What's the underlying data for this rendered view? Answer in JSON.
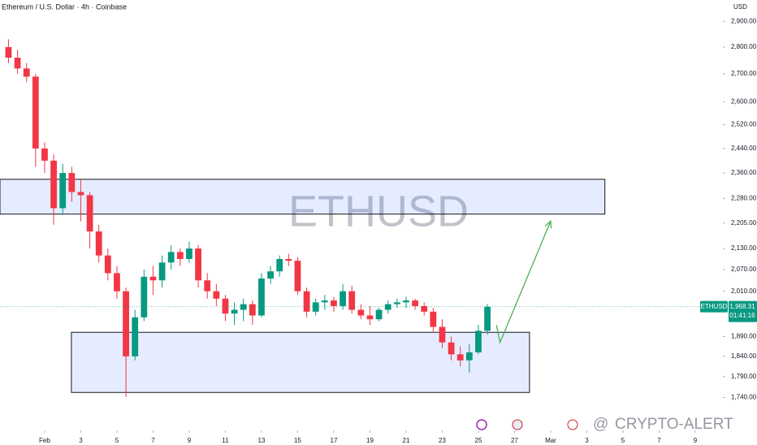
{
  "chart_data": {
    "type": "candlestick",
    "title": "Ethereum / U.S. Dollar · 4h · Coinbase",
    "watermark": "ETHUSD",
    "currency": "USD",
    "symbol": "ETHUSD",
    "last_price": {
      "value": 1968.31,
      "label": "1,968.31"
    },
    "countdown": "01:41:16",
    "brand": "CRYPTO-ALERT",
    "up_color": "#089981",
    "down_color": "#f23645",
    "log_scale": true,
    "grid": false,
    "xlim": [
      -1.47,
      38.53
    ],
    "ylim": [
      1664,
      2985
    ],
    "xticks": [
      {
        "value": 1,
        "label": "Feb"
      },
      3,
      5,
      7,
      9,
      11,
      13,
      15,
      17,
      19,
      21,
      23,
      25,
      27,
      {
        "value": 29,
        "label": "Mar"
      },
      {
        "value": 31,
        "label": "3"
      },
      {
        "value": 33,
        "label": "5"
      },
      {
        "value": 35,
        "label": "7"
      },
      {
        "value": 37,
        "label": "9"
      }
    ],
    "yticks": [
      {
        "value": 2900,
        "label": "2,900.00"
      },
      {
        "value": 2800,
        "label": "2,800.00"
      },
      {
        "value": 2700,
        "label": "2,700.00"
      },
      {
        "value": 2600,
        "label": "2,600.00"
      },
      {
        "value": 2520,
        "label": "2,520.00"
      },
      {
        "value": 2440,
        "label": "2,440.00"
      },
      {
        "value": 2360,
        "label": "2,360.00"
      },
      {
        "value": 2280,
        "label": "2,280.00"
      },
      {
        "value": 2205,
        "label": "2,205.00"
      },
      {
        "value": 2130,
        "label": "2,130.00"
      },
      {
        "value": 2070,
        "label": "2,070.00"
      },
      {
        "value": 2010,
        "label": "2,010.00"
      },
      {
        "value": 1890,
        "label": "1,890.00"
      },
      {
        "value": 1840,
        "label": "1,840.00"
      },
      {
        "value": 1790,
        "label": "1,790.00"
      },
      {
        "value": 1740,
        "label": "1,740.00"
      }
    ],
    "x": [
      -1.0,
      -0.5,
      0.0,
      0.5,
      1.0,
      1.5,
      2.0,
      2.5,
      3.0,
      3.5,
      4.0,
      4.5,
      5.0,
      5.5,
      6.0,
      6.5,
      7.0,
      7.5,
      8.0,
      8.5,
      9.0,
      9.5,
      10.0,
      10.5,
      11.0,
      11.5,
      12.0,
      12.5,
      13.0,
      13.5,
      14.0,
      14.5,
      15.0,
      15.5,
      16.0,
      16.5,
      17.0,
      17.5,
      18.0,
      18.5,
      19.0,
      19.5,
      20.0,
      20.5,
      21.0,
      21.5,
      22.0,
      22.5,
      23.0,
      23.5,
      24.0,
      24.5,
      25.0,
      25.5
    ],
    "open": [
      2800,
      2760,
      2720,
      2690,
      2440,
      2400,
      2250,
      2360,
      2300,
      2290,
      2180,
      2110,
      2060,
      2010,
      1840,
      1940,
      2050,
      2040,
      2090,
      2120,
      2100,
      2130,
      2040,
      2010,
      1990,
      1950,
      1960,
      1975,
      1945,
      2045,
      2065,
      2100,
      2095,
      2010,
      1955,
      1980,
      1985,
      1970,
      2010,
      1960,
      1945,
      1935,
      1960,
      1975,
      1980,
      1985,
      1970,
      1955,
      1915,
      1875,
      1845,
      1830,
      1850,
      1905
    ],
    "high": [
      2830,
      2790,
      2740,
      2700,
      2460,
      2420,
      2390,
      2380,
      2340,
      2300,
      2200,
      2130,
      2080,
      2020,
      1960,
      2070,
      2080,
      2110,
      2140,
      2130,
      2150,
      2140,
      2060,
      2030,
      2000,
      1980,
      1990,
      1985,
      2060,
      2080,
      2110,
      2115,
      2105,
      2020,
      1990,
      2000,
      1995,
      2030,
      2025,
      1975,
      1970,
      1965,
      1985,
      1990,
      1995,
      1990,
      1980,
      1965,
      1935,
      1890,
      1865,
      1870,
      1920,
      1975
    ],
    "low": [
      2740,
      2700,
      2670,
      2380,
      2360,
      2200,
      2230,
      2270,
      2210,
      2130,
      2090,
      2040,
      1990,
      1741,
      1830,
      1930,
      2000,
      2020,
      2070,
      2080,
      2090,
      2020,
      1990,
      1970,
      1930,
      1920,
      1930,
      1920,
      1940,
      2030,
      2050,
      2080,
      2000,
      1940,
      1945,
      1960,
      1955,
      1960,
      1950,
      1935,
      1920,
      1930,
      1950,
      1965,
      1965,
      1960,
      1945,
      1900,
      1860,
      1830,
      1815,
      1800,
      1845,
      1895
    ],
    "close": [
      2760,
      2720,
      2690,
      2440,
      2400,
      2250,
      2360,
      2300,
      2290,
      2180,
      2110,
      2060,
      2010,
      1840,
      1940,
      2050,
      2040,
      2090,
      2120,
      2100,
      2130,
      2040,
      2010,
      1990,
      1950,
      1960,
      1975,
      1945,
      2045,
      2065,
      2100,
      2095,
      2010,
      1955,
      1980,
      1985,
      1970,
      2010,
      1960,
      1945,
      1935,
      1960,
      1975,
      1980,
      1985,
      1970,
      1955,
      1915,
      1875,
      1845,
      1830,
      1850,
      1905,
      1968.31
    ],
    "zones": [
      {
        "x": [
          -1.47,
          32.0
        ],
        "y": [
          2232,
          2340
        ]
      },
      {
        "x": [
          2.48,
          27.83
        ],
        "y": [
          1752,
          1901
        ]
      }
    ],
    "projection": {
      "x": [
        26.0,
        26.2,
        29.0
      ],
      "values": [
        1920,
        1875,
        2211
      ],
      "color": "#4caf50"
    }
  }
}
